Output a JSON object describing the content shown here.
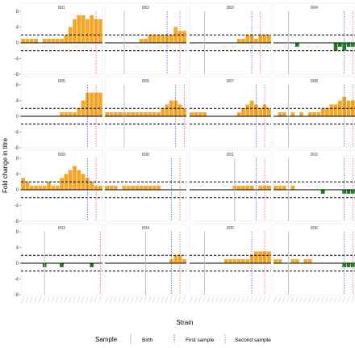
{
  "chart_data": {
    "type": "bar",
    "ylabel": "Fold change in titre",
    "xlabel": "Strain",
    "yticks": [
      -8,
      -4,
      0,
      4,
      8
    ],
    "ylim": [
      -8,
      8
    ],
    "threshold_lines": [
      2,
      -2
    ],
    "legend": {
      "title": "Sample",
      "items": [
        {
          "label": "Birth",
          "color": "#bdbdbd"
        },
        {
          "label": "First sample",
          "color": "#5b6ee1"
        },
        {
          "label": "Second sample",
          "color": "#f26b6b"
        }
      ]
    },
    "colors": {
      "positive": "#f5a623",
      "negative": "#1e7b1e",
      "panel": "#ffffff"
    },
    "strain_count": 19,
    "panels": [
      {
        "title": "881",
        "values": [
          1,
          1,
          1,
          1,
          0,
          1,
          1,
          1,
          1,
          1,
          2,
          4,
          6,
          7,
          7,
          6,
          7,
          6,
          6
        ],
        "birth": null,
        "first": null,
        "second": 17
      },
      {
        "title": "882",
        "values": [
          0,
          0,
          0,
          0,
          0,
          0,
          0,
          0,
          1,
          1,
          2,
          2,
          2,
          2,
          2,
          2,
          4,
          3,
          3
        ],
        "birth": 4,
        "first": 14,
        "second": 17
      },
      {
        "title": "883",
        "values": [
          0,
          0,
          0,
          0,
          0,
          0,
          0,
          0,
          0,
          0,
          0,
          1,
          1,
          2,
          2,
          1,
          2,
          2,
          2
        ],
        "birth": 3,
        "first": 14,
        "second": 16
      },
      {
        "title": "884",
        "values": [
          0,
          0,
          0,
          0,
          0,
          -1,
          0,
          0,
          0,
          0,
          0,
          0,
          0,
          0,
          -2,
          -1,
          -2,
          -1,
          -1
        ],
        "birth": 3,
        "first": 16,
        "second": 18
      },
      {
        "title": "885",
        "values": [
          0,
          0,
          0,
          0,
          0,
          0,
          0,
          0,
          0,
          1,
          1,
          1,
          1,
          2,
          4,
          6,
          6,
          6,
          6
        ],
        "birth": null,
        "first": 15,
        "second": 17
      },
      {
        "title": "886",
        "values": [
          1,
          1,
          1,
          1,
          1,
          1,
          1,
          1,
          1,
          1,
          1,
          1,
          1,
          2,
          3,
          4,
          4,
          3,
          2
        ],
        "birth": 4,
        "first": 16,
        "second": 18
      },
      {
        "title": "887",
        "values": [
          1,
          1,
          1,
          1,
          0,
          0,
          0,
          0,
          0,
          0,
          0,
          1,
          2,
          3,
          4,
          3,
          2,
          3,
          2
        ],
        "birth": null,
        "first": 15,
        "second": 17
      },
      {
        "title": "888",
        "values": [
          0,
          1,
          1,
          0,
          1,
          0,
          1,
          0,
          1,
          1,
          1,
          2,
          2,
          3,
          3,
          4,
          5,
          4,
          4
        ],
        "birth": 3,
        "first": 16,
        "second": 18
      },
      {
        "title": "889",
        "values": [
          3,
          2,
          1,
          1,
          1,
          1,
          2,
          1,
          1,
          3,
          4,
          5,
          6,
          5,
          4,
          3,
          2,
          1,
          1
        ],
        "birth": null,
        "first": 15,
        "second": 17
      },
      {
        "title": "890",
        "values": [
          1,
          1,
          1,
          0,
          1,
          1,
          1,
          1,
          1,
          1,
          1,
          1,
          1,
          0,
          0,
          0,
          0,
          0,
          0
        ],
        "birth": null,
        "first": 15,
        "second": 17
      },
      {
        "title": "891",
        "values": [
          0,
          0,
          0,
          0,
          0,
          0,
          0,
          0,
          0,
          0,
          1,
          1,
          1,
          1,
          1,
          0,
          1,
          1,
          1
        ],
        "birth": 10,
        "first": 15,
        "second": 17
      },
      {
        "title": "892",
        "values": [
          1,
          1,
          1,
          0,
          1,
          0,
          0,
          0,
          0,
          0,
          0,
          -1,
          0,
          0,
          0,
          0,
          -1,
          -1,
          -1
        ],
        "birth": 3,
        "first": 16,
        "second": 18
      },
      {
        "title": "893",
        "values": [
          0,
          0,
          0,
          0,
          0,
          -1,
          0,
          0,
          0,
          -1,
          0,
          0,
          0,
          0,
          0,
          0,
          -1,
          0,
          0
        ],
        "birth": 5,
        "first": null,
        "second": 18
      },
      {
        "title": "894",
        "values": [
          0,
          0,
          0,
          0,
          0,
          0,
          0,
          0,
          0,
          0,
          0,
          0,
          0,
          0,
          0,
          1,
          2,
          2,
          1
        ],
        "birth": 9,
        "first": 15,
        "second": 17
      },
      {
        "title": "895",
        "values": [
          0,
          0,
          0,
          0,
          0,
          0,
          0,
          0,
          1,
          1,
          1,
          1,
          1,
          1,
          2,
          3,
          3,
          3,
          3
        ],
        "birth": 3,
        "first": 14,
        "second": 17
      },
      {
        "title": "896",
        "values": [
          1,
          1,
          0,
          0,
          1,
          1,
          0,
          1,
          1,
          0,
          0,
          0,
          0,
          0,
          0,
          0,
          -1,
          -1,
          -1
        ],
        "birth": 3,
        "first": 16,
        "second": 18
      }
    ]
  }
}
